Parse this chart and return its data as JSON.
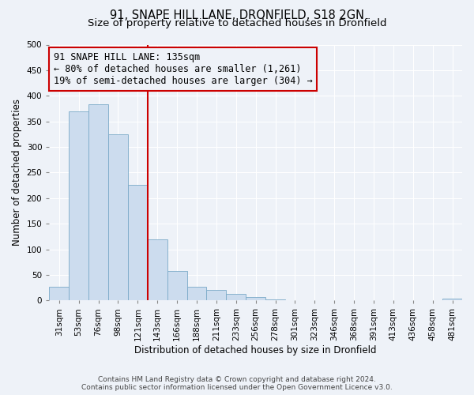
{
  "title": "91, SNAPE HILL LANE, DRONFIELD, S18 2GN",
  "subtitle": "Size of property relative to detached houses in Dronfield",
  "xlabel": "Distribution of detached houses by size in Dronfield",
  "ylabel": "Number of detached properties",
  "bar_labels": [
    "31sqm",
    "53sqm",
    "76sqm",
    "98sqm",
    "121sqm",
    "143sqm",
    "166sqm",
    "188sqm",
    "211sqm",
    "233sqm",
    "256sqm",
    "278sqm",
    "301sqm",
    "323sqm",
    "346sqm",
    "368sqm",
    "391sqm",
    "413sqm",
    "436sqm",
    "458sqm",
    "481sqm"
  ],
  "bar_values": [
    27,
    370,
    383,
    325,
    226,
    120,
    57,
    27,
    20,
    13,
    6,
    2,
    1,
    0,
    0,
    0,
    0,
    0,
    0,
    0,
    3
  ],
  "bar_color": "#ccdcee",
  "bar_edge_color": "#7aaac8",
  "vline_color": "#cc0000",
  "annotation_title": "91 SNAPE HILL LANE: 135sqm",
  "annotation_line1": "← 80% of detached houses are smaller (1,261)",
  "annotation_line2": "19% of semi-detached houses are larger (304) →",
  "annotation_box_edgecolor": "#cc0000",
  "ylim": [
    0,
    500
  ],
  "yticks": [
    0,
    50,
    100,
    150,
    200,
    250,
    300,
    350,
    400,
    450,
    500
  ],
  "footer1": "Contains HM Land Registry data © Crown copyright and database right 2024.",
  "footer2": "Contains public sector information licensed under the Open Government Licence v3.0.",
  "bg_color": "#eef2f8",
  "plot_bg_color": "#eef2f8",
  "grid_color": "#ffffff",
  "title_fontsize": 10.5,
  "subtitle_fontsize": 9.5,
  "axis_label_fontsize": 8.5,
  "tick_fontsize": 7.5,
  "annotation_fontsize": 8.5,
  "footer_fontsize": 6.5
}
